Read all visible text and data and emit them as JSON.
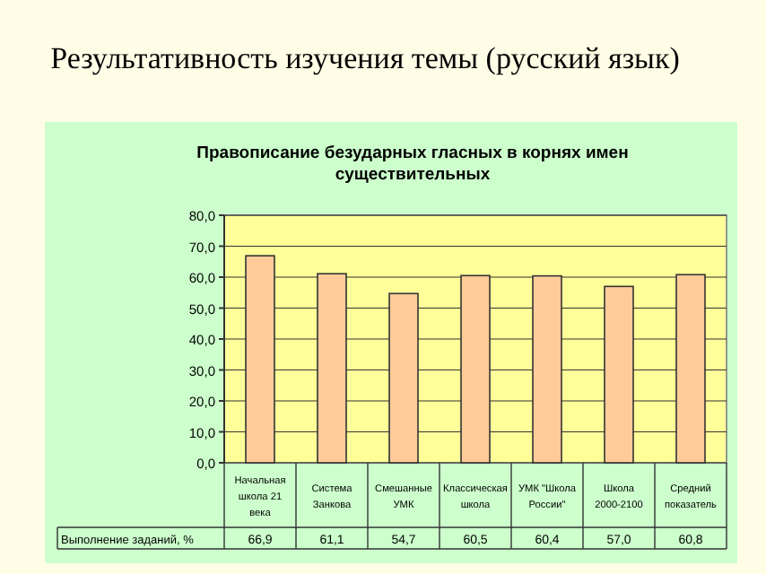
{
  "chart_data": {
    "type": "bar",
    "title": "Результативность изучения темы (русский язык)",
    "subtitle": "Правописание безударных гласных в корнях имен существительных",
    "categories": [
      "Начальная школа 21 века",
      "Система Занкова",
      "Смешанные УМК",
      "Классическая школа",
      "УМК \"Школа России\"",
      "Школа 2000-2100",
      "Средний показатель"
    ],
    "series": [
      {
        "name": "Выполнение заданий, %",
        "color": "#ffcc99",
        "values": [
          66.9,
          61.1,
          54.7,
          60.5,
          60.4,
          57.0,
          60.8
        ],
        "value_labels": [
          "66,9",
          "61,1",
          "54,7",
          "60,5",
          "60,4",
          "57,0",
          "60,8"
        ]
      }
    ],
    "ylim": [
      0,
      80
    ],
    "yticks": [
      {
        "value": 0,
        "label": "0,0"
      },
      {
        "value": 10,
        "label": "10,0"
      },
      {
        "value": 20,
        "label": "20,0"
      },
      {
        "value": 30,
        "label": "30,0"
      },
      {
        "value": 40,
        "label": "40,0"
      },
      {
        "value": 50,
        "label": "50,0"
      },
      {
        "value": 60,
        "label": "60,0"
      },
      {
        "value": 70,
        "label": "70,0"
      },
      {
        "value": 80,
        "label": "80,0"
      }
    ],
    "grid": "y"
  }
}
